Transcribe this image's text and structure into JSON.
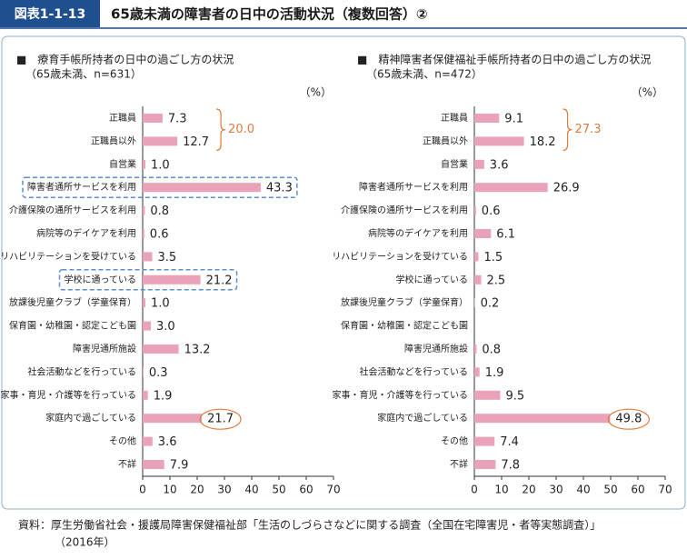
{
  "header": {
    "figure_label": "図表1-1-13",
    "title": "65歳未満の障害者の日中の活動状況（複数回答）②"
  },
  "chart_data": [
    {
      "type": "bar",
      "orientation": "horizontal",
      "title": "■　療育手帳所持者の日中の過ごし方の状況",
      "subtitle": "（65歳未満、n=631）",
      "unit_label": "（%）",
      "categories": [
        "正職員",
        "正職員以外",
        "自営業",
        "障害者通所サービスを利用",
        "介護保険の通所サービスを利用",
        "病院等のデイケアを利用",
        "リハビリテーションを受けている",
        "学校に通っている",
        "放課後児童クラブ（学童保育）",
        "保育園・幼稚園・認定こども園",
        "障害児通所施設",
        "社会活動などを行っている",
        "家事・育児・介護等を行っている",
        "家庭内で過ごしている",
        "その他",
        "不詳"
      ],
      "values": [
        7.3,
        12.7,
        1.0,
        43.3,
        0.8,
        0.6,
        3.5,
        21.2,
        1.0,
        3.0,
        13.2,
        0.3,
        1.9,
        21.7,
        3.6,
        7.9
      ],
      "value_labels": [
        "7.3",
        "12.7",
        "1.0",
        "43.3",
        "0.8",
        "0.6",
        "3.5",
        "21.2",
        "1.0",
        "3.0",
        "13.2",
        "0.3",
        "1.9",
        "21.7",
        "3.6",
        "7.9"
      ],
      "color": "#e9a2b7",
      "xlim": [
        0,
        70
      ],
      "xticks": [
        0,
        10,
        20,
        30,
        40,
        50,
        60,
        70
      ],
      "annotation": "20.0",
      "annotation_color": "#e07b39"
    },
    {
      "type": "bar",
      "orientation": "horizontal",
      "title": "■　精神障害者保健福祉手帳所持者の日中の過ごし方の状況",
      "subtitle": "（65歳未満、n=472）",
      "unit_label": "（%）",
      "categories": [
        "正職員",
        "正職員以外",
        "自営業",
        "障害者通所サービスを利用",
        "介護保険の通所サービスを利用",
        "病院等のデイケアを利用",
        "リハビリテーションを受けている",
        "学校に通っている",
        "放課後児童クラブ（学童保育）",
        "保育園・幼稚園・認定こども園",
        "障害児通所施設",
        "社会活動などを行っている",
        "家事・育児・介護等を行っている",
        "家庭内で過ごしている",
        "その他",
        "不詳"
      ],
      "values": [
        9.1,
        18.2,
        3.6,
        26.9,
        0.6,
        6.1,
        1.5,
        2.5,
        0.2,
        null,
        0.8,
        1.9,
        9.5,
        49.8,
        7.4,
        7.8
      ],
      "value_labels": [
        "9.1",
        "18.2",
        "3.6",
        "26.9",
        "0.6",
        "6.1",
        "1.5",
        "2.5",
        "0.2",
        null,
        "0.8",
        "1.9",
        "9.5",
        "49.8",
        "7.4",
        "7.8"
      ],
      "color": "#e9a2b7",
      "xlim": [
        0,
        70
      ],
      "xticks": [
        0,
        10,
        20,
        30,
        40,
        50,
        60,
        70
      ],
      "annotation": "27.3",
      "annotation_color": "#e07b39"
    }
  ],
  "source": {
    "line1": "資料：厚生労働省社会・援護局障害保健福祉部「生活のしづらさなどに関する調査（全国在宅障害児・者等実態調査）」",
    "line2": "（2016年）"
  }
}
